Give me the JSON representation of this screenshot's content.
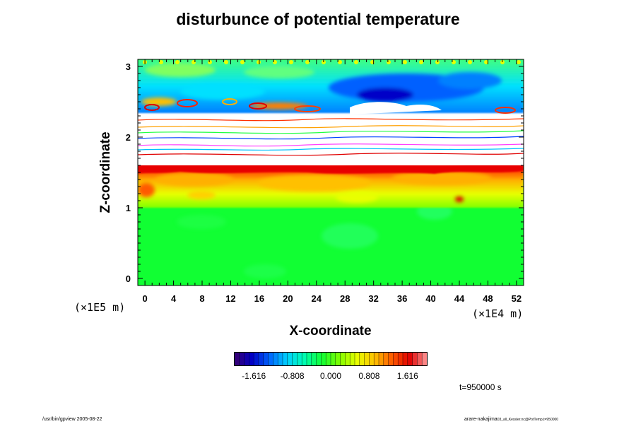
{
  "chart_data": {
    "type": "heatmap",
    "title": "disturbunce of potential temperature",
    "xlabel": "X-coordinate",
    "ylabel": "Z-coordinate",
    "x_scale_note": "(×1E4 m)",
    "z_scale_note": "(×1E5 m)",
    "xlim": [
      -1,
      53
    ],
    "ylim": [
      -0.1,
      3.1
    ],
    "x_ticks": [
      "0",
      "4",
      "8",
      "12",
      "16",
      "20",
      "24",
      "28",
      "32",
      "36",
      "40",
      "44",
      "48",
      "52"
    ],
    "x_tick_values": [
      0,
      4,
      8,
      12,
      16,
      20,
      24,
      28,
      32,
      36,
      40,
      44,
      48,
      52
    ],
    "y_ticks": [
      "0",
      "1",
      "2",
      "3"
    ],
    "y_tick_values": [
      0,
      1,
      2,
      3
    ],
    "colorbar": {
      "labels": [
        "-1.616",
        "-0.808",
        "0.000",
        "0.808",
        "1.616"
      ],
      "values": [
        -1.616,
        -0.808,
        0.0,
        0.808,
        1.616
      ],
      "range": [
        -2.02,
        2.02
      ],
      "colors": [
        "#3a0070",
        "#0000c8",
        "#0066ff",
        "#00d0ff",
        "#00ffb0",
        "#11ff33",
        "#80ff00",
        "#e8ff00",
        "#ffc000",
        "#ff5a00",
        "#e00000",
        "#ff9a9a"
      ]
    },
    "time_label": "t=950000 s"
  },
  "footer": {
    "left": "/usr/bin/gpview 2005-08-22",
    "right_main": "arare-nakajima",
    "right_sub": "03_all_Kessler.nc@PotTemp,t=950000"
  }
}
